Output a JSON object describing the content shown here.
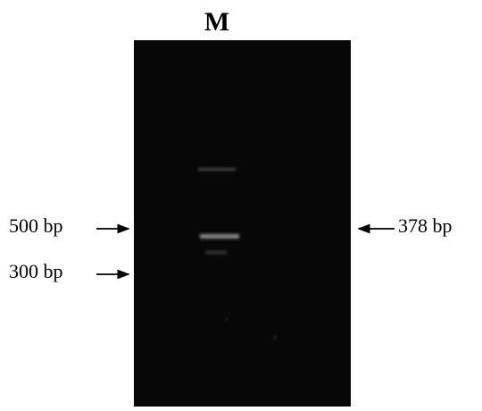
{
  "lane_label": "M",
  "left_markers": [
    "500 bp",
    "300 bp"
  ],
  "right_markers": [
    "378 bp"
  ]
}
